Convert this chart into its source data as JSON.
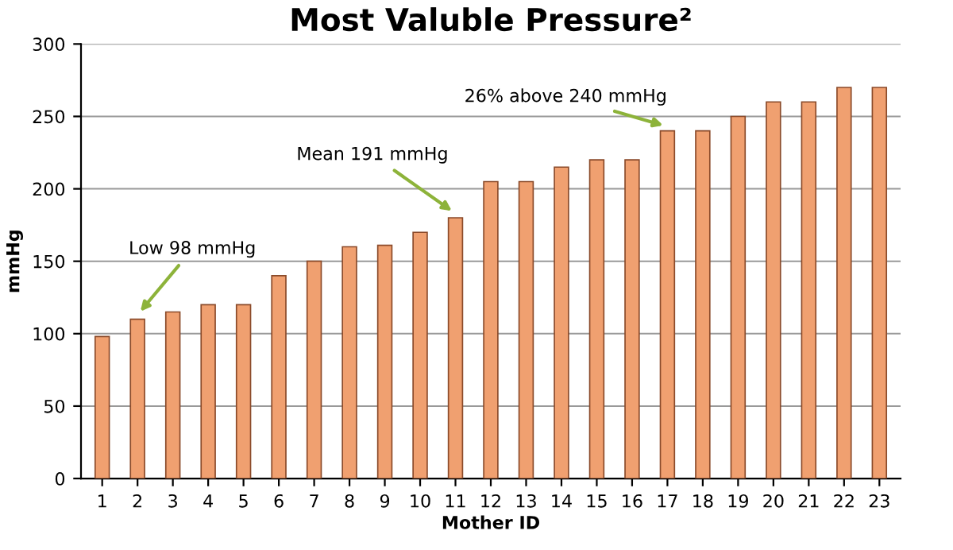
{
  "chart_data": {
    "type": "bar",
    "title": "Most Valuble Pressure²",
    "xlabel": "Mother ID",
    "ylabel": "mmHg",
    "categories": [
      "1",
      "2",
      "3",
      "4",
      "5",
      "6",
      "7",
      "8",
      "9",
      "10",
      "11",
      "12",
      "13",
      "14",
      "15",
      "16",
      "17",
      "18",
      "19",
      "20",
      "21",
      "22",
      "23"
    ],
    "values": [
      98,
      110,
      115,
      120,
      120,
      140,
      150,
      160,
      161,
      170,
      180,
      205,
      205,
      215,
      220,
      220,
      240,
      240,
      250,
      260,
      260,
      270,
      270
    ],
    "color": "#f0a070",
    "ylim": [
      0,
      300
    ],
    "yticks": [
      0,
      50,
      100,
      150,
      200,
      250,
      300
    ],
    "grid": "y",
    "annotations": [
      {
        "text": "Low 98 mmHg",
        "x": "2",
        "y": 110
      },
      {
        "text": "Mean 191 mmHg",
        "x": "11",
        "y": 180
      },
      {
        "text": "26% above 240 mmHg",
        "x": "17",
        "y": 240
      }
    ]
  }
}
